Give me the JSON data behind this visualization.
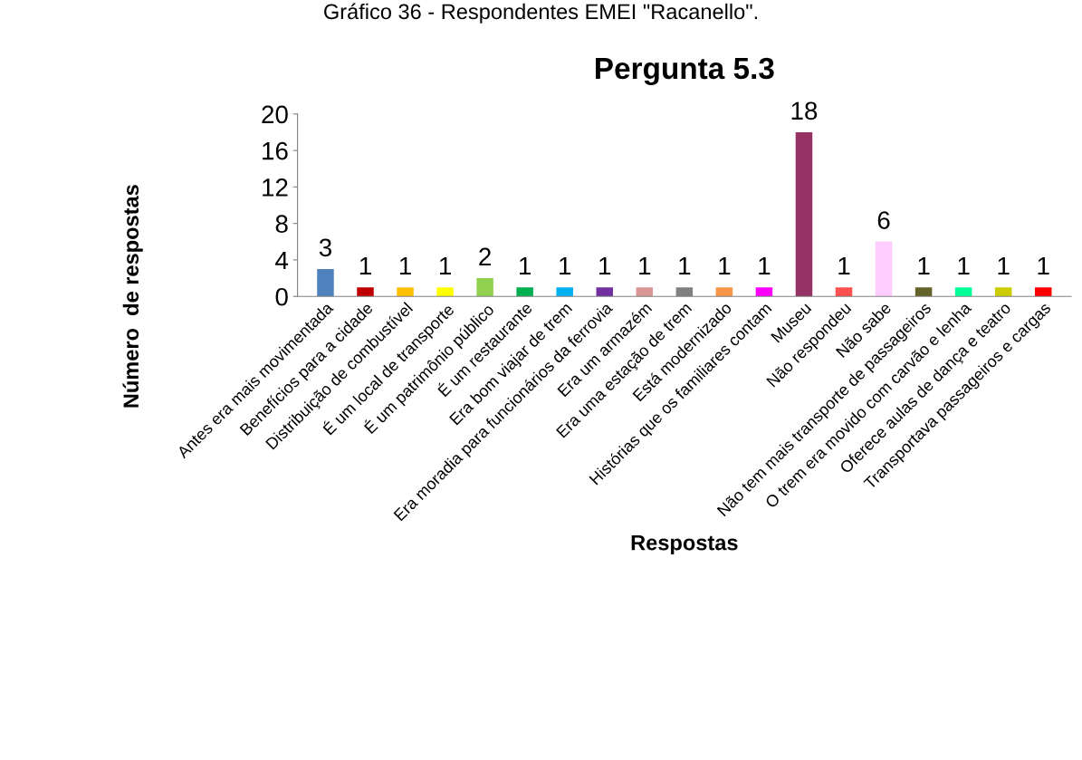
{
  "chart_data": {
    "type": "bar",
    "title": "Pergunta 5.3",
    "xlabel": "Respostas",
    "ylabel": "Número  de respostas",
    "annotations": [
      "Gráfico 36 - Respondentes EMEI \"Racanello\"."
    ],
    "categories": [
      "Antes era mais movimentada",
      "Benefícios para a cidade",
      "Distribuição de combustível",
      "É um local de transporte",
      "É um patrimônio público",
      "É um restaurante",
      "Era bom viajar de trem",
      "Era moradia para funcionários da ferrovia",
      "Era um armazém",
      "Era uma estação de trem",
      "Está modernizado",
      "Histórias que os familiares contam",
      "Museu",
      "Não respondeu",
      "Não sabe",
      "Não tem mais transporte de passageiros",
      "O trem era movido com carvão e lenha",
      "Oferece aulas de dança e teatro",
      "Transportava passageiros e cargas"
    ],
    "values": [
      3,
      1,
      1,
      1,
      2,
      1,
      1,
      1,
      1,
      1,
      1,
      1,
      18,
      1,
      6,
      1,
      1,
      1,
      1
    ],
    "colors": [
      "#4f81bd",
      "#c00000",
      "#ffc000",
      "#ffff00",
      "#92d050",
      "#00b050",
      "#00b0f0",
      "#7030a0",
      "#d99694",
      "#808080",
      "#f79646",
      "#ff00ff",
      "#953163",
      "#ff5050",
      "#ffccff",
      "#636329",
      "#00ff99",
      "#cccc00",
      "#ff0000"
    ],
    "ylim": [
      0,
      20
    ],
    "yticks": [
      0,
      4,
      8,
      12,
      16,
      20
    ],
    "data_labels": true,
    "grid": false,
    "legend": false
  }
}
